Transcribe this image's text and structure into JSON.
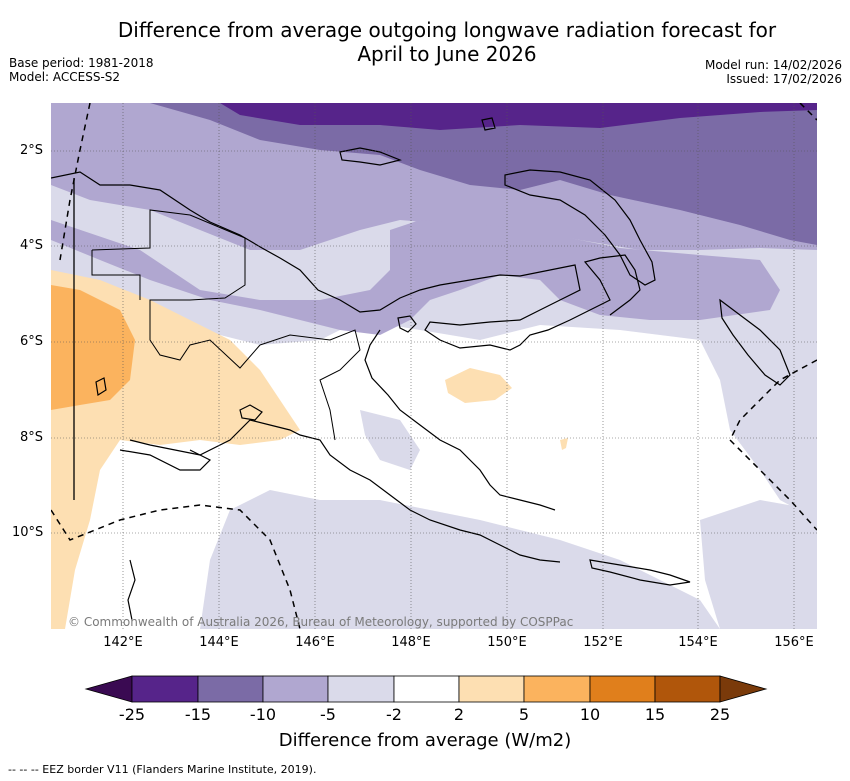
{
  "header": {
    "title_line1": "Difference from average outgoing longwave radiation forecast for",
    "title_line2": "April to June 2026",
    "base_period": "Base period: 1981-2018",
    "model": "Model: ACCESS-S2",
    "model_run": "Model run: 14/02/2026",
    "issued": "Issued: 17/02/2026"
  },
  "map": {
    "lat_labels": [
      "2°S",
      "4°S",
      "6°S",
      "8°S",
      "10°S"
    ],
    "lon_labels": [
      "142°E",
      "144°E",
      "146°E",
      "148°E",
      "150°E",
      "152°E",
      "154°E",
      "156°E"
    ],
    "copyright": "© Commonwealth of Australia 2026, Bureau of Meteorology, supported by COSPPac"
  },
  "colorbar": {
    "labels": [
      "-25",
      "-15",
      "-10",
      "-5",
      "-2",
      "2",
      "5",
      "10",
      "15",
      "25"
    ],
    "colors": [
      "#3a0a52",
      "#56248a",
      "#7b6ba6",
      "#b0a7d0",
      "#dadaea",
      "#ffffff",
      "#fddfb2",
      "#fbb35e",
      "#e07f1c",
      "#b0560b",
      "#7a3a0a"
    ],
    "title": "Difference from average (W/m2)"
  },
  "footnote": "--  --  -- EEZ border V11 (Flanders Marine Institute, 2019)."
}
